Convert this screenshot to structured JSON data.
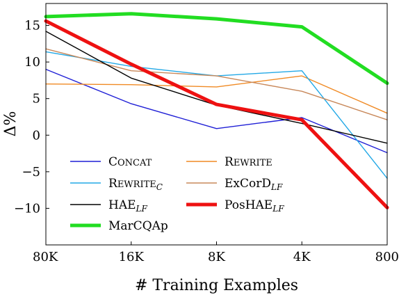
{
  "chart_data": {
    "type": "line",
    "categories": [
      "80K",
      "16K",
      "8K",
      "4K",
      "800"
    ],
    "xlabel": "# Training Examples",
    "ylabel": "Δ%",
    "ylim": [
      -15,
      18
    ],
    "yticks": [
      -10,
      -5,
      0,
      5,
      10,
      15
    ],
    "ytick_labels": [
      "−10",
      "−5",
      "0",
      "5",
      "10",
      "15"
    ],
    "grid": false,
    "legend_placement": "lower-left",
    "series": [
      {
        "name": "Concat",
        "legend_main": "Concat",
        "legend_sub": "",
        "color": "#1f1fd6",
        "width": "thin",
        "values": [
          9.0,
          4.3,
          0.9,
          2.4,
          -2.4
        ]
      },
      {
        "name": "Rewrite",
        "legend_main": "Rewrite",
        "legend_sub": "",
        "color": "#f08a24",
        "width": "thin",
        "values": [
          7.0,
          6.9,
          6.6,
          8.1,
          3.0
        ]
      },
      {
        "name": "RewriteC",
        "legend_main": "Rewrite",
        "legend_sub": "C",
        "color": "#22a8e6",
        "width": "thin",
        "values": [
          11.4,
          9.4,
          8.1,
          8.8,
          -5.9
        ]
      },
      {
        "name": "ExCorDLF",
        "legend_main": "ExCorD",
        "legend_sub": "LF",
        "color": "#c8885a",
        "width": "thin",
        "values": [
          11.8,
          8.8,
          8.1,
          6.0,
          2.1
        ]
      },
      {
        "name": "HAELF",
        "legend_main": "HAE",
        "legend_sub": "LF",
        "color": "#000000",
        "width": "thin",
        "values": [
          14.2,
          7.8,
          4.1,
          1.6,
          -1.1
        ]
      },
      {
        "name": "PosHAELF",
        "legend_main": "PosHAE",
        "legend_sub": "LF",
        "color": "#ee1111",
        "width": "thick",
        "values": [
          15.6,
          9.7,
          4.2,
          2.1,
          -9.9
        ]
      },
      {
        "name": "MarCQAp",
        "legend_main": "MarCQAp",
        "legend_sub": "",
        "color": "#22dd22",
        "width": "thick",
        "values": [
          16.2,
          16.6,
          15.9,
          14.8,
          7.1
        ]
      }
    ]
  }
}
